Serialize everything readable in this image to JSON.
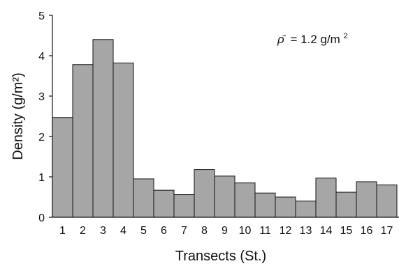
{
  "chart_data": {
    "type": "bar",
    "xlabel": "Transects (St.)",
    "ylabel": "Density (g/m²)",
    "categories": [
      "1",
      "2",
      "3",
      "4",
      "5",
      "6",
      "7",
      "8",
      "9",
      "10",
      "11",
      "12",
      "13",
      "14",
      "15",
      "16",
      "17"
    ],
    "values": [
      2.47,
      3.78,
      4.4,
      3.82,
      0.95,
      0.67,
      0.56,
      1.18,
      1.02,
      0.85,
      0.6,
      0.5,
      0.4,
      0.97,
      0.62,
      0.88,
      0.8
    ],
    "ylim": [
      0,
      5
    ],
    "yticks": [
      "0",
      "1",
      "2",
      "3",
      "4",
      "5"
    ],
    "annotation": {
      "symbol": "ρ̄",
      "text": "= 1.2 g/m",
      "superscript": "2"
    },
    "bar_color": "#a6a6a6",
    "grid": false
  }
}
